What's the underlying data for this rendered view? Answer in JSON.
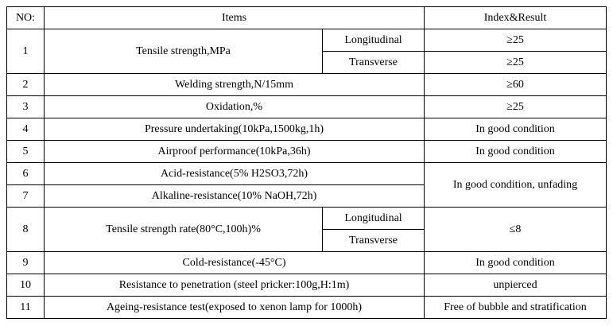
{
  "table": {
    "background": "#ffffff",
    "border_color": "#000000",
    "header": {
      "no": "NO:",
      "items": "Items",
      "result": "Index&Result"
    },
    "rows": {
      "r1": {
        "no": "1",
        "item": "Tensile strength,MPa",
        "longitudinal": "Longitudinal",
        "longitudinal_result": "≥25",
        "transverse": "Transverse",
        "transverse_result": "≥25"
      },
      "r2": {
        "no": "2",
        "item": "Welding strength,N/15mm",
        "result": "≥60"
      },
      "r3": {
        "no": "3",
        "item": "Oxidation,%",
        "result": "≥25"
      },
      "r4": {
        "no": "4",
        "item": "Pressure undertaking(10kPa,1500kg,1h)",
        "result": "In good condition"
      },
      "r5": {
        "no": "5",
        "item": "Airproof performance(10kPa,36h)",
        "result": "In good condition"
      },
      "r6": {
        "no": "6",
        "item": "Acid-resistance(5% H2SO3,72h)"
      },
      "r7": {
        "no": "7",
        "item": "Alkaline-resistance(10% NaOH,72h)"
      },
      "r6_7_result": "In good condition, unfading",
      "r8": {
        "no": "8",
        "item": "Tensile strength rate(80°C,100h)%",
        "longitudinal": "Longitudinal",
        "transverse": "Transverse",
        "result": "≤8"
      },
      "r9": {
        "no": "9",
        "item": "Cold-resistance(-45°C)",
        "result": "In good condition"
      },
      "r10": {
        "no": "10",
        "item": "Resistance to penetration (steel pricker:100g,H:1m)",
        "result": "unpierced"
      },
      "r11": {
        "no": "11",
        "item": "Ageing-resistance test(exposed to xenon lamp for 1000h)",
        "result": "Free of bubble and stratification"
      }
    }
  }
}
